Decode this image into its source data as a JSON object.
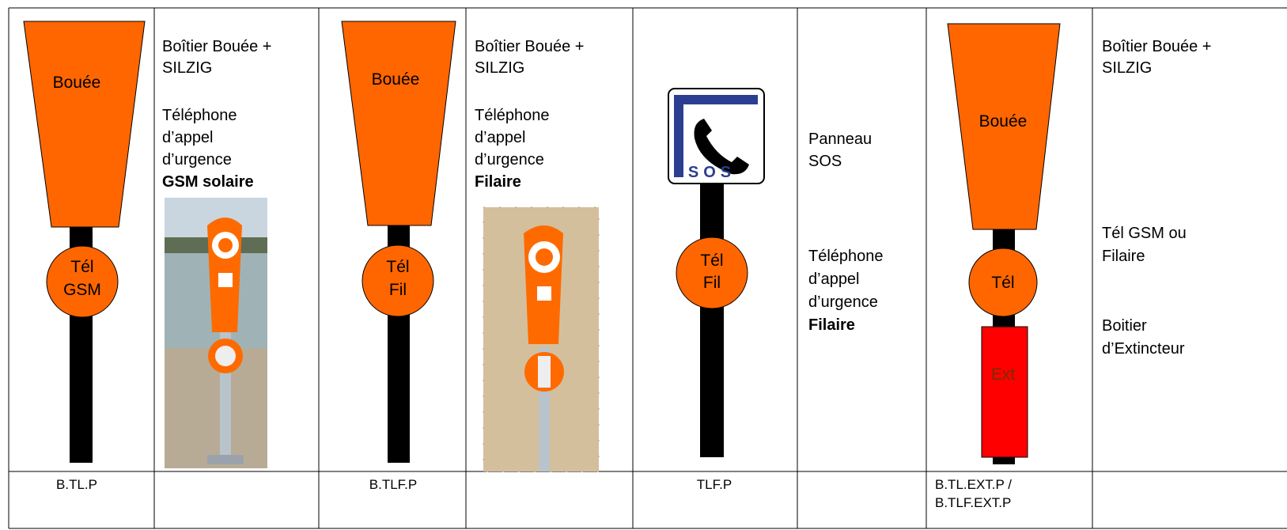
{
  "table": {
    "columns": [
      {
        "buoy": "Bouée",
        "phone": [
          "Tél",
          "GSM"
        ],
        "code": "B.TL.P"
      },
      {
        "title": [
          "Boîtier Bouée +",
          "SILZIG"
        ],
        "phone": [
          "Téléphone",
          "d’appel",
          "d’urgence"
        ],
        "kind": "GSM solaire"
      },
      {
        "buoy": "Bouée",
        "phone": [
          "Tél",
          "Fil"
        ],
        "code": "B.TLF.P"
      },
      {
        "title": [
          "Boîtier Bouée +",
          "SILZIG"
        ],
        "phone": [
          "Téléphone",
          "d’appel",
          "d’urgence"
        ],
        "kind": "Filaire"
      },
      {
        "sign": "SOS",
        "phone": [
          "Tél",
          "Fil"
        ],
        "code": "TLF.P"
      },
      {
        "title": [
          "Panneau",
          "SOS"
        ],
        "phone": [
          "Téléphone",
          "d’appel",
          "d’urgence"
        ],
        "kind": "Filaire"
      },
      {
        "buoy": "Bouée",
        "phone": [
          "Tél"
        ],
        "extinguisher": "Ext",
        "code": [
          "B.TL.EXT.P /",
          "B.TLF.EXT.P"
        ]
      },
      {
        "title": [
          "Boîtier Bouée +",
          "SILZIG"
        ],
        "phone": [
          "Tél GSM ou",
          "Filaire"
        ],
        "extinguisher": [
          "Boitier",
          "d’Extincteur"
        ]
      }
    ]
  }
}
